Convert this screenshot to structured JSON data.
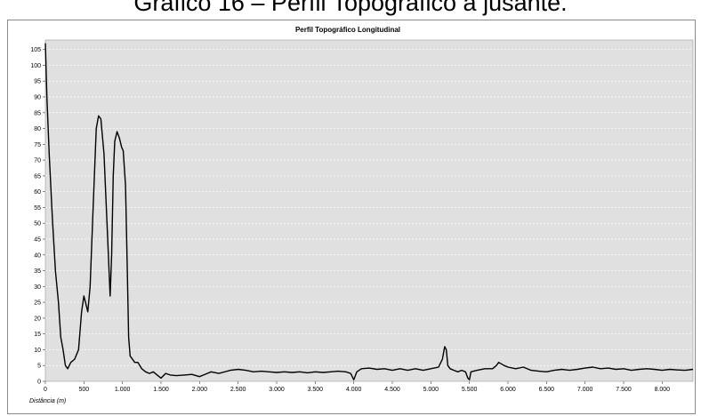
{
  "caption": "Gráfico 16 – Perfil Topográfico à jusante.",
  "chart_data": {
    "type": "line",
    "title": "Perfil Topográfico Longitudinal",
    "xlabel": "Distância (m)",
    "ylabel": "",
    "xlim": [
      0,
      8400
    ],
    "ylim": [
      0,
      108
    ],
    "x_ticks": [
      0,
      500,
      1000,
      1500,
      2000,
      2500,
      3000,
      3500,
      4000,
      4500,
      5000,
      5500,
      6000,
      6500,
      7000,
      7500,
      8000
    ],
    "x_tick_labels": [
      "0",
      "500",
      "1.000",
      "1.500",
      "2.000",
      "2.500",
      "3.000",
      "3.500",
      "4.000",
      "4.500",
      "5.000",
      "5.500",
      "6.000",
      "6.500",
      "7.000",
      "7.500",
      "8.000"
    ],
    "y_ticks": [
      0,
      5,
      10,
      15,
      20,
      25,
      30,
      35,
      40,
      45,
      50,
      55,
      60,
      65,
      70,
      75,
      80,
      85,
      90,
      95,
      100,
      105
    ],
    "grid": true,
    "line_color": "#000000",
    "plot_background": "#e0e0e0",
    "series": [
      {
        "x": [
          0,
          20,
          50,
          90,
          130,
          170,
          200,
          230,
          260,
          290,
          330,
          380,
          430,
          470,
          500,
          520,
          550,
          580,
          620,
          660,
          690,
          720,
          760,
          800,
          840,
          860,
          880,
          900,
          930,
          960,
          990,
          1010,
          1040,
          1060,
          1080,
          1100,
          1130,
          1160,
          1200,
          1250,
          1300,
          1350,
          1400,
          1450,
          1500,
          1560,
          1620,
          1700,
          1800,
          1900,
          2000,
          2050,
          2100,
          2150,
          2250,
          2400,
          2500,
          2600,
          2700,
          2800,
          2900,
          3000,
          3100,
          3200,
          3300,
          3400,
          3500,
          3600,
          3700,
          3800,
          3900,
          3960,
          4000,
          4040,
          4100,
          4200,
          4300,
          4400,
          4500,
          4600,
          4700,
          4800,
          4900,
          5000,
          5100,
          5150,
          5180,
          5200,
          5220,
          5250,
          5300,
          5350,
          5400,
          5450,
          5480,
          5500,
          5520,
          5600,
          5700,
          5800,
          5850,
          5880,
          5950,
          6000,
          6100,
          6200,
          6300,
          6400,
          6500,
          6600,
          6700,
          6800,
          6900,
          7000,
          7100,
          7200,
          7300,
          7400,
          7500,
          7600,
          7700,
          7800,
          7900,
          8000,
          8100,
          8200,
          8300,
          8400
        ],
        "y": [
          107,
          90,
          72,
          52,
          35,
          25,
          14,
          10,
          5,
          4,
          6,
          7,
          10,
          22,
          27,
          25,
          22,
          30,
          55,
          80,
          84,
          83,
          72,
          50,
          27,
          40,
          65,
          76,
          79,
          77,
          74,
          73,
          62,
          38,
          14,
          8,
          7,
          6,
          6,
          4,
          3,
          2.5,
          3,
          2,
          1,
          2.5,
          2,
          1.8,
          2,
          2.2,
          1.5,
          2,
          2.5,
          3,
          2.5,
          3.5,
          3.8,
          3.5,
          3,
          3.2,
          3,
          2.8,
          3,
          2.8,
          3,
          2.7,
          3,
          2.8,
          3,
          3.2,
          3,
          2.5,
          0.5,
          3,
          4,
          4.2,
          3.8,
          4,
          3.5,
          4,
          3.5,
          4,
          3.5,
          4,
          4.5,
          7,
          11,
          10,
          5,
          4,
          3.5,
          3,
          3.5,
          3,
          1,
          0.5,
          3,
          3.5,
          4,
          4,
          5,
          6,
          5,
          4.5,
          4,
          4.5,
          3.5,
          3.2,
          3,
          3.5,
          3.8,
          3.5,
          3.8,
          4.2,
          4.5,
          4,
          4.2,
          3.8,
          4,
          3.5,
          3.8,
          4,
          3.8,
          3.5,
          3.8,
          3.6,
          3.5,
          3.8
        ]
      }
    ]
  }
}
